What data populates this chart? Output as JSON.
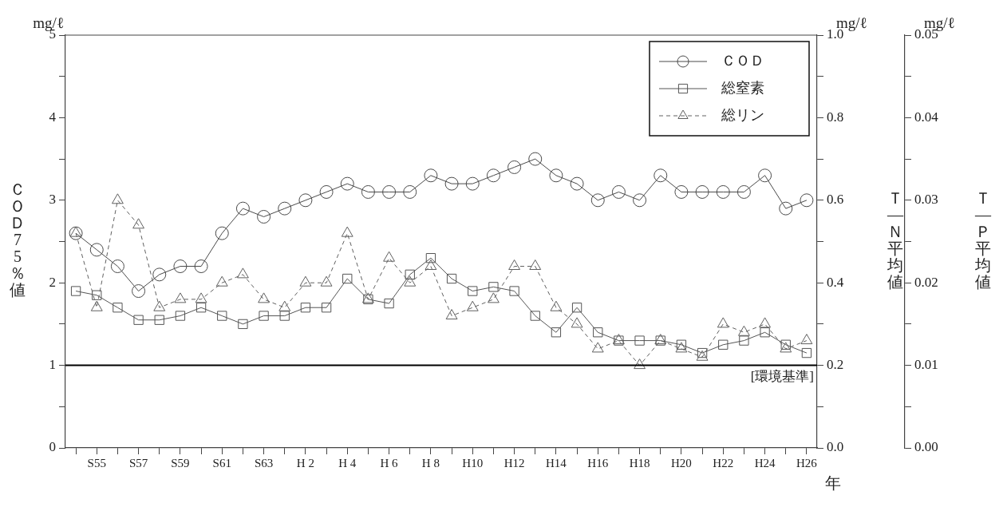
{
  "chart_data": {
    "type": "line",
    "categories": [
      null,
      "S55",
      null,
      "S57",
      null,
      "S59",
      null,
      "S61",
      null,
      "S63",
      null,
      "H 2",
      null,
      "H 4",
      null,
      "H 6",
      null,
      "H 8",
      null,
      "H10",
      null,
      "H12",
      null,
      "H14",
      null,
      "H16",
      null,
      "H18",
      null,
      "H20",
      null,
      "H22",
      null,
      "H24",
      null,
      "H26"
    ],
    "series": [
      {
        "name": "ＣＯＤ",
        "color": "#4a4a4a",
        "marker": "circle",
        "line_style": "solid",
        "values": [
          2.6,
          2.4,
          2.2,
          1.9,
          2.1,
          2.2,
          2.2,
          2.6,
          2.9,
          2.8,
          2.9,
          3.0,
          3.1,
          3.2,
          3.1,
          3.1,
          3.1,
          3.3,
          3.2,
          3.2,
          3.3,
          3.4,
          3.5,
          3.3,
          3.2,
          3.0,
          3.1,
          3.0,
          3.3,
          3.1,
          3.1,
          3.1,
          3.1,
          3.3,
          2.9,
          3.0
        ]
      },
      {
        "name": "総窒素",
        "color": "#555555",
        "marker": "square",
        "line_style": "solid",
        "axis": "y2",
        "values": [
          0.38,
          0.37,
          0.34,
          0.31,
          0.31,
          0.32,
          0.34,
          0.32,
          0.3,
          0.32,
          0.32,
          0.34,
          0.34,
          0.41,
          0.36,
          0.35,
          0.42,
          0.46,
          0.41,
          0.38,
          0.39,
          0.38,
          0.32,
          0.28,
          0.34,
          0.28,
          0.26,
          0.26,
          0.26,
          0.25,
          0.23,
          0.25,
          0.26,
          0.28,
          0.25,
          0.23
        ]
      },
      {
        "name": "総リン",
        "color": "#606060",
        "marker": "triangle",
        "line_style": "dashed",
        "axis": "y3",
        "values": [
          0.026,
          0.017,
          0.03,
          0.027,
          0.017,
          0.018,
          0.018,
          0.02,
          0.021,
          0.018,
          0.017,
          0.02,
          0.02,
          0.026,
          0.018,
          0.023,
          0.02,
          0.022,
          0.016,
          0.017,
          0.018,
          0.022,
          0.022,
          0.017,
          0.015,
          0.012,
          0.013,
          0.01,
          0.013,
          0.012,
          0.011,
          0.015,
          0.014,
          0.015,
          0.012,
          0.013
        ]
      }
    ],
    "xlabel": "年",
    "ylabel": "ＣＯＤ75％値",
    "y2label": "Ｔ—Ｎ平均値",
    "y3label": "Ｔ—Ｐ平均値",
    "annotations": [
      "mg/ℓ",
      "mg/ℓ",
      "mg/ℓ"
    ],
    "ylim": [
      0,
      5
    ],
    "yticks": [
      0,
      {
        "value": 0.5,
        "label": null
      },
      1,
      {
        "value": 1.5,
        "label": null
      },
      2,
      {
        "value": 2.5,
        "label": null
      },
      3,
      {
        "value": 3.5,
        "label": null
      },
      4,
      {
        "value": 4.5,
        "label": null
      },
      5
    ],
    "y2lim": [
      0,
      1
    ],
    "y2ticks": [
      {
        "value": 0,
        "label": "0.0"
      },
      {
        "value": 0.1,
        "label": null
      },
      {
        "value": 0.2,
        "label": "0.2"
      },
      {
        "value": 0.3,
        "label": null
      },
      {
        "value": 0.4,
        "label": "0.4"
      },
      {
        "value": 0.5,
        "label": null
      },
      {
        "value": 0.6,
        "label": "0.6"
      },
      {
        "value": 0.7,
        "label": null
      },
      {
        "value": 0.8,
        "label": "0.8"
      },
      {
        "value": 0.9,
        "label": null
      },
      {
        "value": 1,
        "label": "1.0"
      }
    ],
    "y3lim": [
      0,
      0.05
    ],
    "y3ticks": [
      {
        "value": 0,
        "label": "0.00"
      },
      {
        "value": 0.005,
        "label": null
      },
      {
        "value": 0.01,
        "label": "0.01"
      },
      {
        "value": 0.015,
        "label": null
      },
      {
        "value": 0.02,
        "label": "0.02"
      },
      {
        "value": 0.025,
        "label": null
      },
      {
        "value": 0.03,
        "label": "0.03"
      },
      {
        "value": 0.035,
        "label": null
      },
      {
        "value": 0.04,
        "label": "0.04"
      },
      {
        "value": 0.045,
        "label": null
      },
      {
        "value": 0.05,
        "label": "0.05"
      }
    ],
    "ref_lines": [
      {
        "axis": "y",
        "value": 1,
        "label": "[環境基準]",
        "color": "#000000",
        "line_style": "solid"
      }
    ],
    "legend": "top right",
    "grid": false
  }
}
